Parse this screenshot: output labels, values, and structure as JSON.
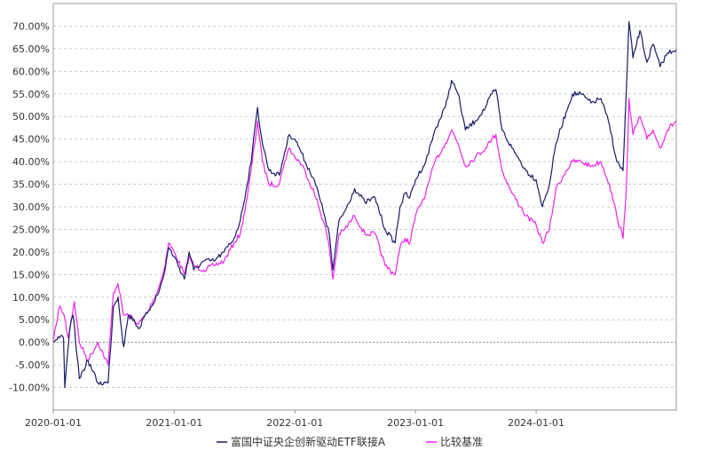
{
  "chart_data": {
    "type": "line",
    "title": "",
    "xlabel": "",
    "ylabel": "",
    "x_range": [
      "2020-01-01",
      "2025-02-28"
    ],
    "ylim": [
      -15,
      75
    ],
    "x_ticks": [
      "2020-01-01",
      "2021-01-01",
      "2022-01-01",
      "2023-01-01",
      "2024-01-01"
    ],
    "y_ticks": [
      -10,
      -5,
      0,
      5,
      10,
      15,
      20,
      25,
      30,
      35,
      40,
      45,
      50,
      55,
      60,
      65,
      70
    ],
    "y_tick_labels": [
      "-10.00%",
      "-5.00%",
      "0.00%",
      "5.00%",
      "10.00%",
      "15.00%",
      "20.00%",
      "25.00%",
      "30.00%",
      "35.00%",
      "40.00%",
      "45.00%",
      "50.00%",
      "55.00%",
      "60.00%",
      "65.00%",
      "70.00%"
    ],
    "grid": true,
    "legend_position": "bottom-center",
    "colors": {
      "fund": "#1a1a66",
      "benchmark": "#ee22ee",
      "grid": "#cccccc",
      "zero": "#888888",
      "frame": "#999999"
    },
    "series": [
      {
        "name": "富国中证央企创新驱动ETF联接A",
        "points": [
          [
            "2020-01-01",
            0
          ],
          [
            "2020-01-20",
            1
          ],
          [
            "2020-02-01",
            1
          ],
          [
            "2020-02-05",
            -10
          ],
          [
            "2020-02-20",
            3
          ],
          [
            "2020-03-01",
            6
          ],
          [
            "2020-03-20",
            -8
          ],
          [
            "2020-04-15",
            -4
          ],
          [
            "2020-05-15",
            -9
          ],
          [
            "2020-06-15",
            -9
          ],
          [
            "2020-07-01",
            8
          ],
          [
            "2020-07-15",
            10
          ],
          [
            "2020-08-01",
            -1
          ],
          [
            "2020-08-15",
            6
          ],
          [
            "2020-09-01",
            5
          ],
          [
            "2020-09-15",
            3
          ],
          [
            "2020-10-15",
            7
          ],
          [
            "2020-11-15",
            11
          ],
          [
            "2020-12-01",
            15
          ],
          [
            "2020-12-15",
            21
          ],
          [
            "2021-01-01",
            19
          ],
          [
            "2021-02-01",
            14
          ],
          [
            "2021-02-15",
            20
          ],
          [
            "2021-03-01",
            16
          ],
          [
            "2021-04-01",
            18
          ],
          [
            "2021-05-01",
            18
          ],
          [
            "2021-06-01",
            20
          ],
          [
            "2021-07-01",
            23
          ],
          [
            "2021-07-20",
            27
          ],
          [
            "2021-08-10",
            35
          ],
          [
            "2021-08-25",
            42
          ],
          [
            "2021-09-10",
            52
          ],
          [
            "2021-09-25",
            44
          ],
          [
            "2021-10-15",
            38
          ],
          [
            "2021-11-15",
            37
          ],
          [
            "2021-12-01",
            42
          ],
          [
            "2021-12-15",
            46
          ],
          [
            "2022-01-01",
            45
          ],
          [
            "2022-01-15",
            43
          ],
          [
            "2022-02-01",
            40
          ],
          [
            "2022-03-01",
            36
          ],
          [
            "2022-04-01",
            28
          ],
          [
            "2022-04-15",
            24
          ],
          [
            "2022-04-26",
            16
          ],
          [
            "2022-05-15",
            27
          ],
          [
            "2022-06-01",
            29
          ],
          [
            "2022-07-01",
            34
          ],
          [
            "2022-08-01",
            31
          ],
          [
            "2022-09-01",
            32
          ],
          [
            "2022-10-01",
            25
          ],
          [
            "2022-10-31",
            22
          ],
          [
            "2022-11-15",
            30
          ],
          [
            "2022-12-01",
            33
          ],
          [
            "2022-12-15",
            32
          ],
          [
            "2023-01-01",
            36
          ],
          [
            "2023-02-01",
            40
          ],
          [
            "2023-03-01",
            47
          ],
          [
            "2023-04-01",
            52
          ],
          [
            "2023-04-20",
            58
          ],
          [
            "2023-05-10",
            55
          ],
          [
            "2023-06-01",
            47
          ],
          [
            "2023-07-01",
            49
          ],
          [
            "2023-08-01",
            52
          ],
          [
            "2023-08-20",
            55
          ],
          [
            "2023-09-01",
            56
          ],
          [
            "2023-09-20",
            47
          ],
          [
            "2023-10-20",
            43
          ],
          [
            "2023-11-15",
            40
          ],
          [
            "2023-12-01",
            38
          ],
          [
            "2024-01-01",
            36
          ],
          [
            "2024-01-20",
            30
          ],
          [
            "2024-02-10",
            35
          ],
          [
            "2024-03-01",
            44
          ],
          [
            "2024-04-01",
            51
          ],
          [
            "2024-04-20",
            55
          ],
          [
            "2024-05-15",
            55
          ],
          [
            "2024-06-15",
            53
          ],
          [
            "2024-07-15",
            54
          ],
          [
            "2024-08-10",
            48
          ],
          [
            "2024-09-01",
            40
          ],
          [
            "2024-09-20",
            38
          ],
          [
            "2024-09-30",
            56
          ],
          [
            "2024-10-08",
            71
          ],
          [
            "2024-10-20",
            63
          ],
          [
            "2024-11-10",
            69
          ],
          [
            "2024-12-01",
            62
          ],
          [
            "2024-12-20",
            66
          ],
          [
            "2025-01-10",
            61
          ],
          [
            "2025-02-01",
            64
          ],
          [
            "2025-02-28",
            65
          ]
        ]
      },
      {
        "name": "比较基准",
        "points": [
          [
            "2020-01-01",
            0
          ],
          [
            "2020-01-10",
            4
          ],
          [
            "2020-01-20",
            8
          ],
          [
            "2020-02-03",
            6
          ],
          [
            "2020-02-15",
            1
          ],
          [
            "2020-03-05",
            9
          ],
          [
            "2020-03-20",
            0
          ],
          [
            "2020-04-15",
            -4
          ],
          [
            "2020-05-15",
            0
          ],
          [
            "2020-06-15",
            -5
          ],
          [
            "2020-07-01",
            11
          ],
          [
            "2020-07-15",
            13
          ],
          [
            "2020-08-01",
            6
          ],
          [
            "2020-08-15",
            6
          ],
          [
            "2020-09-01",
            5
          ],
          [
            "2020-09-15",
            4
          ],
          [
            "2020-10-15",
            7
          ],
          [
            "2020-11-15",
            12
          ],
          [
            "2020-12-01",
            16
          ],
          [
            "2020-12-15",
            22
          ],
          [
            "2021-01-01",
            20
          ],
          [
            "2021-02-01",
            15
          ],
          [
            "2021-02-15",
            19
          ],
          [
            "2021-03-01",
            17
          ],
          [
            "2021-04-01",
            16
          ],
          [
            "2021-05-01",
            17
          ],
          [
            "2021-06-01",
            18
          ],
          [
            "2021-07-01",
            22
          ],
          [
            "2021-07-20",
            24
          ],
          [
            "2021-08-10",
            32
          ],
          [
            "2021-08-25",
            40
          ],
          [
            "2021-09-10",
            49
          ],
          [
            "2021-09-25",
            40
          ],
          [
            "2021-10-15",
            35
          ],
          [
            "2021-11-15",
            35
          ],
          [
            "2021-12-01",
            40
          ],
          [
            "2021-12-15",
            43
          ],
          [
            "2022-01-01",
            41
          ],
          [
            "2022-01-15",
            40
          ],
          [
            "2022-02-01",
            38
          ],
          [
            "2022-03-01",
            33
          ],
          [
            "2022-04-01",
            26
          ],
          [
            "2022-04-15",
            21
          ],
          [
            "2022-04-26",
            14
          ],
          [
            "2022-05-15",
            24
          ],
          [
            "2022-06-01",
            25
          ],
          [
            "2022-07-01",
            28
          ],
          [
            "2022-08-01",
            24
          ],
          [
            "2022-09-01",
            24
          ],
          [
            "2022-10-01",
            17
          ],
          [
            "2022-10-31",
            15
          ],
          [
            "2022-11-15",
            21
          ],
          [
            "2022-12-01",
            23
          ],
          [
            "2022-12-15",
            22
          ],
          [
            "2023-01-01",
            28
          ],
          [
            "2023-02-01",
            33
          ],
          [
            "2023-03-01",
            40
          ],
          [
            "2023-04-01",
            44
          ],
          [
            "2023-04-20",
            47
          ],
          [
            "2023-05-10",
            44
          ],
          [
            "2023-06-01",
            39
          ],
          [
            "2023-07-01",
            41
          ],
          [
            "2023-08-01",
            43
          ],
          [
            "2023-08-20",
            45
          ],
          [
            "2023-09-01",
            46
          ],
          [
            "2023-09-20",
            38
          ],
          [
            "2023-10-20",
            33
          ],
          [
            "2023-11-15",
            30
          ],
          [
            "2023-12-01",
            28
          ],
          [
            "2024-01-01",
            26
          ],
          [
            "2024-01-20",
            22
          ],
          [
            "2024-02-10",
            25
          ],
          [
            "2024-03-01",
            34
          ],
          [
            "2024-04-01",
            38
          ],
          [
            "2024-04-20",
            40
          ],
          [
            "2024-05-15",
            40
          ],
          [
            "2024-06-15",
            39
          ],
          [
            "2024-07-15",
            40
          ],
          [
            "2024-08-10",
            35
          ],
          [
            "2024-09-01",
            28
          ],
          [
            "2024-09-20",
            23
          ],
          [
            "2024-09-30",
            34
          ],
          [
            "2024-10-08",
            54
          ],
          [
            "2024-10-20",
            46
          ],
          [
            "2024-11-10",
            50
          ],
          [
            "2024-12-01",
            45
          ],
          [
            "2024-12-20",
            47
          ],
          [
            "2025-01-10",
            43
          ],
          [
            "2025-02-01",
            47
          ],
          [
            "2025-02-28",
            49
          ]
        ]
      }
    ]
  }
}
